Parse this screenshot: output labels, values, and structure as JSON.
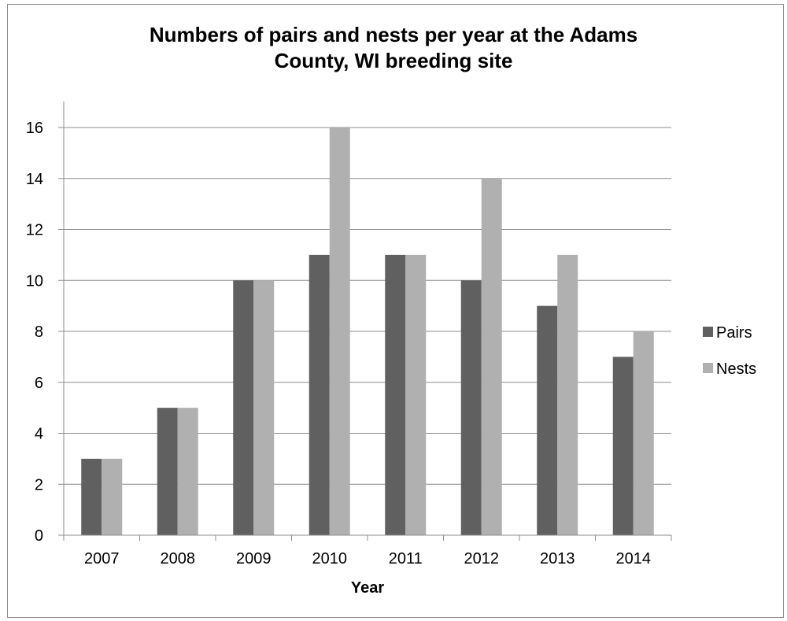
{
  "chart_data": {
    "type": "bar",
    "title": "Numbers of pairs and nests per year at the Adams\nCounty, WI breeding site",
    "xlabel": "Year",
    "ylabel": "",
    "categories": [
      "2007",
      "2008",
      "2009",
      "2010",
      "2011",
      "2012",
      "2013",
      "2014"
    ],
    "series": [
      {
        "name": "Pairs",
        "values": [
          3,
          5,
          10,
          11,
          11,
          10,
          9,
          7
        ],
        "color": "#606060"
      },
      {
        "name": "Nests",
        "values": [
          3,
          5,
          10,
          16,
          11,
          14,
          11,
          8
        ],
        "color": "#b0b0b0"
      }
    ],
    "ylim": [
      0,
      16
    ],
    "yticks": [
      0,
      2,
      4,
      6,
      8,
      10,
      12,
      14,
      16
    ],
    "grid": true,
    "legend_position": "right",
    "colors": {
      "gridline": "#8c8c8c",
      "axis": "#8c8c8c"
    }
  }
}
